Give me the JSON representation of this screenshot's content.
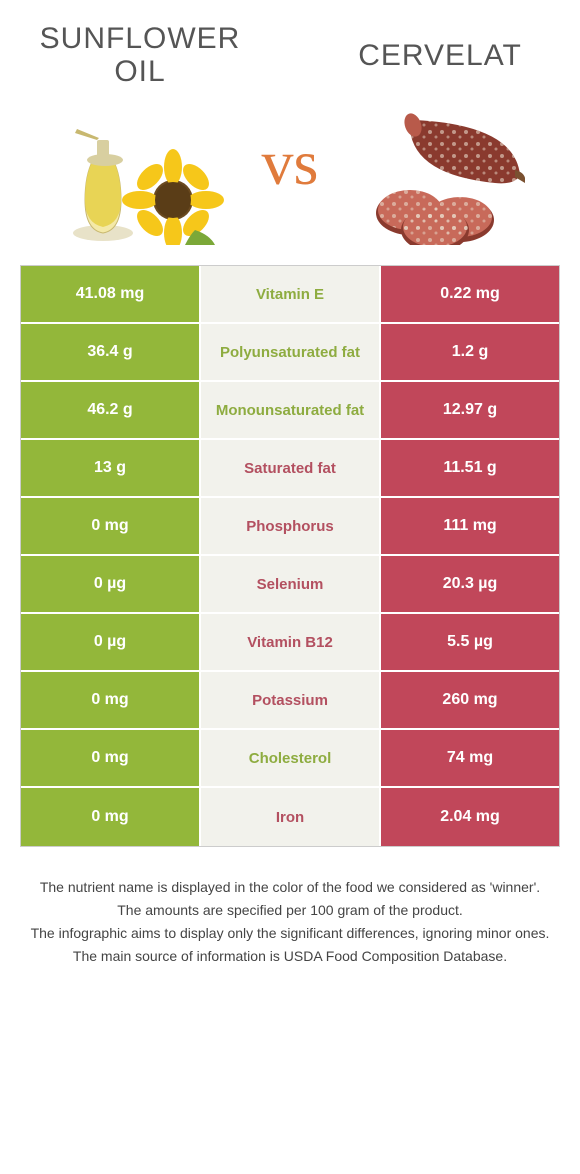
{
  "colors": {
    "left": "#93b73a",
    "right": "#c1475a",
    "mid_bg": "#f2f2ec",
    "left_text": "#8eac40",
    "right_text": "#b35060"
  },
  "foods": {
    "left": {
      "title": "Sunflower\noil"
    },
    "right": {
      "title": "Cervelat"
    }
  },
  "vs": "vs",
  "rows": [
    {
      "label": "Vitamin E",
      "left": "41.08 mg",
      "right": "0.22 mg",
      "winner": "left"
    },
    {
      "label": "Polyunsaturated fat",
      "left": "36.4 g",
      "right": "1.2 g",
      "winner": "left"
    },
    {
      "label": "Monounsaturated fat",
      "left": "46.2 g",
      "right": "12.97 g",
      "winner": "left"
    },
    {
      "label": "Saturated fat",
      "left": "13 g",
      "right": "11.51 g",
      "winner": "right"
    },
    {
      "label": "Phosphorus",
      "left": "0 mg",
      "right": "111 mg",
      "winner": "right"
    },
    {
      "label": "Selenium",
      "left": "0 µg",
      "right": "20.3 µg",
      "winner": "right"
    },
    {
      "label": "Vitamin B12",
      "left": "0 µg",
      "right": "5.5 µg",
      "winner": "right"
    },
    {
      "label": "Potassium",
      "left": "0 mg",
      "right": "260 mg",
      "winner": "right"
    },
    {
      "label": "Cholesterol",
      "left": "0 mg",
      "right": "74 mg",
      "winner": "left"
    },
    {
      "label": "Iron",
      "left": "0 mg",
      "right": "2.04 mg",
      "winner": "right"
    }
  ],
  "footer": [
    "The nutrient name is displayed in the color of the food we considered as 'winner'.",
    "The amounts are specified per 100 gram of the product.",
    "The infographic aims to display only the significant differences, ignoring minor ones.",
    "The main source of information is USDA Food Composition Database."
  ]
}
